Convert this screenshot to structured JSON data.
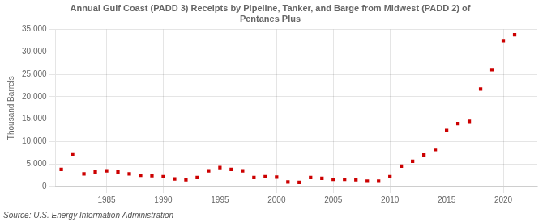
{
  "chart_data": {
    "type": "scatter",
    "title": "Annual Gulf Coast (PADD 3) Receipts by Pipeline, Tanker, and Barge from Midwest (PADD 2) of\nPentanes Plus",
    "ylabel": "Thousand Barrels",
    "source": "Source: U.S. Energy Information Administration",
    "x": [
      1981,
      1982,
      1983,
      1984,
      1985,
      1986,
      1987,
      1988,
      1989,
      1990,
      1991,
      1992,
      1993,
      1994,
      1995,
      1996,
      1997,
      1998,
      1999,
      2000,
      2001,
      2002,
      2003,
      2004,
      2005,
      2006,
      2007,
      2008,
      2009,
      2010,
      2011,
      2012,
      2013,
      2014,
      2015,
      2016,
      2017,
      2018,
      2019,
      2020,
      2021
    ],
    "values": [
      3800,
      7200,
      2800,
      3200,
      3500,
      3200,
      2800,
      2500,
      2400,
      2200,
      1700,
      1500,
      2000,
      3500,
      4200,
      3800,
      3500,
      2000,
      2200,
      2100,
      1000,
      900,
      2000,
      1800,
      1600,
      1600,
      1500,
      1200,
      1200,
      2200,
      4500,
      5600,
      7000,
      8200,
      12500,
      14000,
      14500,
      21700,
      26000,
      32500,
      33800
    ],
    "color": "#cc0000",
    "marker": "square",
    "xlim": [
      1980.5,
      2023
    ],
    "xticks": [
      1985,
      1990,
      1995,
      2000,
      2005,
      2010,
      2015,
      2020
    ],
    "ylim": [
      0,
      35000
    ],
    "yticks": [
      0,
      {
        "value": 5000,
        "label": "5,000"
      },
      {
        "value": 10000,
        "label": "10,000"
      },
      {
        "value": 15000,
        "label": "15,000"
      },
      {
        "value": 20000,
        "label": "20,000"
      },
      {
        "value": 25000,
        "label": "25,000"
      },
      {
        "value": 30000,
        "label": "30,000"
      },
      {
        "value": 35000,
        "label": "35,000"
      }
    ],
    "grid": true
  }
}
